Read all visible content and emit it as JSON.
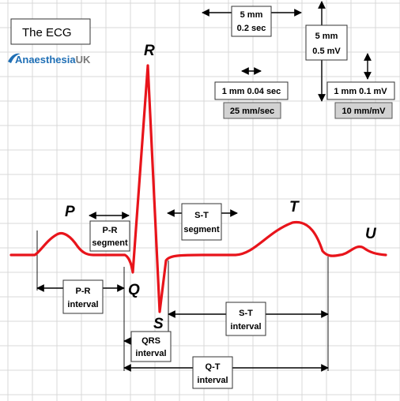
{
  "figure": {
    "title": "The ECG",
    "brand": {
      "prefix": "Anaesthesia",
      "suffix": "UK",
      "prefix_color": "#1f6fb5",
      "suffix_color": "#7a7a7a",
      "icon": "swoosh-icon"
    }
  },
  "colors": {
    "trace": "#e8141b",
    "grid": "#d9d9d9",
    "grey_box": "#d2d2d2"
  },
  "scale": {
    "time_large": {
      "line1": "5 mm",
      "line2": "0.2 sec"
    },
    "volt_large": {
      "line1": "5 mm",
      "line2": "0.5 mV"
    },
    "time_small": "1 mm 0.04 sec",
    "volt_small": "1 mm 0.1 mV",
    "paper_speed": "25 mm/sec",
    "gain": "10 mm/mV"
  },
  "waves": {
    "p": "P",
    "q": "Q",
    "r": "R",
    "s": "S",
    "t": "T",
    "u": "U"
  },
  "segments": {
    "pr_segment": {
      "line1": "P-R",
      "line2": "segment"
    },
    "st_segment": {
      "line1": "S-T",
      "line2": "segment"
    }
  },
  "intervals": {
    "pr_interval": {
      "line1": "P-R",
      "line2": "interval"
    },
    "st_interval": {
      "line1": "S-T",
      "line2": "interval"
    },
    "qrs_interval": {
      "line1": "QRS",
      "line2": "interval"
    },
    "qt_interval": {
      "line1": "Q-T",
      "line2": "interval"
    }
  }
}
